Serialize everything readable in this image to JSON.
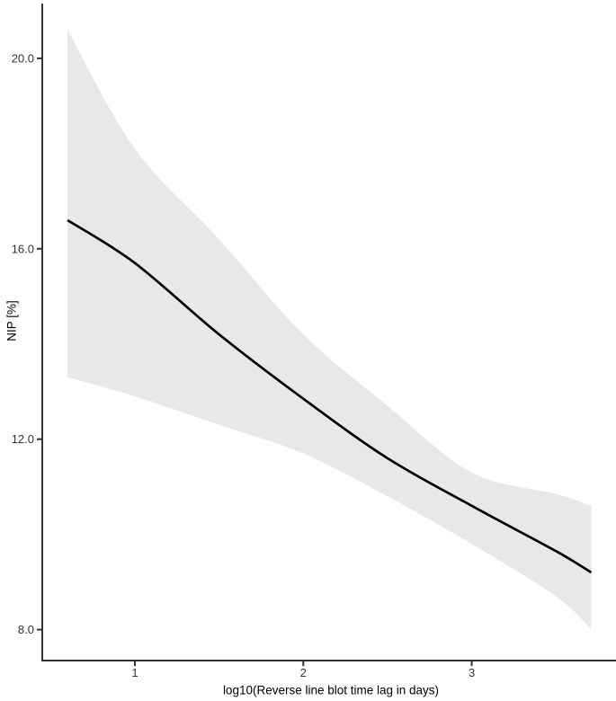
{
  "figure": {
    "background": "#ffffff",
    "axis_color": "#333333",
    "tick_color": "#333333",
    "tick_label_color": "#333333",
    "line_color": "#000000",
    "ribbon_color": "#e8e8e8"
  },
  "chart_data": {
    "type": "line",
    "title": "",
    "xlabel": "log10(Reverse line blot time lag in days)",
    "ylabel": "NIP [%]",
    "grid": false,
    "legend": false,
    "xlim": [
      0.45,
      3.83
    ],
    "ylim": [
      7.35,
      21.15
    ],
    "x_tick_values": [
      1,
      2,
      3
    ],
    "x_tick_labels": [
      "1",
      "2",
      "3"
    ],
    "y_tick_values": [
      8,
      12,
      16,
      20
    ],
    "y_tick_labels": [
      "8.0",
      "12.0",
      "16.0",
      "20.0"
    ],
    "series": [
      {
        "name": "fitted-nip-vs-log10-time-lag",
        "style": "smooth-line-with-ci-ribbon",
        "x": [
          0.6,
          1.0,
          1.5,
          2.0,
          2.5,
          3.0,
          3.5,
          3.71
        ],
        "y": [
          16.6,
          15.7,
          14.2,
          12.85,
          11.6,
          10.6,
          9.65,
          9.2
        ],
        "ci_upper": [
          20.6,
          18.1,
          16.2,
          14.2,
          12.7,
          11.3,
          10.85,
          10.6
        ],
        "ci_lower": [
          13.3,
          12.9,
          12.3,
          11.7,
          10.8,
          9.8,
          8.7,
          8.0
        ]
      }
    ]
  }
}
